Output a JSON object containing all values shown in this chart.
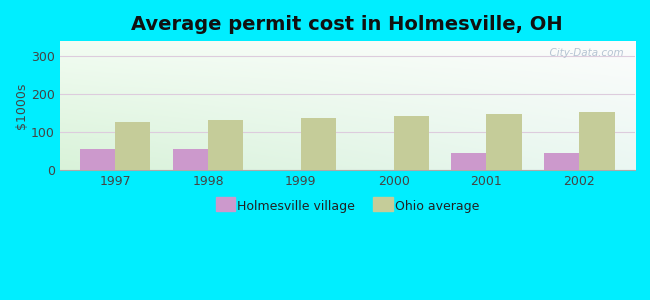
{
  "title": "Average permit cost in Holmesville, OH",
  "ylabel": "$1000s",
  "years": [
    1997,
    1998,
    1999,
    2000,
    2001,
    2002
  ],
  "holmesville": [
    57,
    57,
    0,
    0,
    45,
    45
  ],
  "ohio_avg": [
    127,
    132,
    137,
    143,
    148,
    153
  ],
  "holmesville_color": "#cc99cc",
  "ohio_color": "#c5cc99",
  "background_outer": "#00eeff",
  "ylim": [
    0,
    340
  ],
  "yticks": [
    0,
    100,
    200,
    300
  ],
  "bar_width": 0.38,
  "title_fontsize": 14,
  "legend_labels": [
    "Holmesville village",
    "Ohio average"
  ],
  "watermark": "  City-Data.com"
}
